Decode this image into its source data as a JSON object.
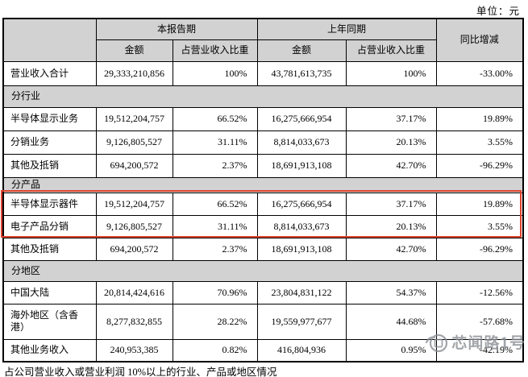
{
  "unit_label": "单位：元",
  "table": {
    "header": {
      "current_period": "本报告期",
      "prior_period": "上年同期",
      "yoy": "同比增减",
      "amount": "金额",
      "pct": "占营业收入比重"
    },
    "rows": [
      {
        "type": "data",
        "label": "营业收入合计",
        "cells": [
          "29,333,210,856",
          "100%",
          "43,781,613,735",
          "100%",
          "-33.00%"
        ]
      },
      {
        "type": "section",
        "label": "分行业"
      },
      {
        "type": "data",
        "label": "半导体显示业务",
        "cells": [
          "19,512,204,757",
          "66.52%",
          "16,275,666,954",
          "37.17%",
          "19.89%"
        ]
      },
      {
        "type": "data",
        "label": "分销业务",
        "cells": [
          "9,126,805,527",
          "31.11%",
          "8,814,033,673",
          "20.13%",
          "3.55%"
        ]
      },
      {
        "type": "data",
        "label": "其他及抵销",
        "cells": [
          "694,200,572",
          "2.37%",
          "18,691,913,108",
          "42.70%",
          "-96.29%"
        ]
      },
      {
        "type": "section",
        "label": "分产品"
      },
      {
        "type": "data",
        "label": "半导体显示器件",
        "highlight": true,
        "cells": [
          "19,512,204,757",
          "66.52%",
          "16,275,666,954",
          "37.17%",
          "19.89%"
        ]
      },
      {
        "type": "data",
        "label": "电子产品分销",
        "highlight": true,
        "cells": [
          "9,126,805,527",
          "31.11%",
          "8,814,033,673",
          "20.13%",
          "3.55%"
        ]
      },
      {
        "type": "data",
        "label": "其他及抵销",
        "cells": [
          "694,200,572",
          "2.37%",
          "18,691,913,108",
          "42.70%",
          "-96.29%"
        ]
      },
      {
        "type": "section",
        "label": "分地区"
      },
      {
        "type": "data",
        "label": "中国大陆",
        "cells": [
          "20,814,424,616",
          "70.96%",
          "23,804,831,122",
          "54.37%",
          "-12.56%"
        ]
      },
      {
        "type": "data",
        "label": "海外地区（含香港）",
        "cells": [
          "8,277,832,855",
          "28.22%",
          "19,559,977,677",
          "44.68%",
          "-57.68%"
        ]
      },
      {
        "type": "data",
        "label": "其他业务收入",
        "cells": [
          "240,953,385",
          "0.82%",
          "416,804,936",
          "0.95%",
          "-42.19%"
        ]
      }
    ]
  },
  "footer_note": "占公司营业收入或营业利润 10%以上的行业、产品或地区情况",
  "watermark": {
    "text": "芯闻路1号"
  },
  "highlight_color": "#e0432e",
  "header_bg": "#d2d2d2"
}
